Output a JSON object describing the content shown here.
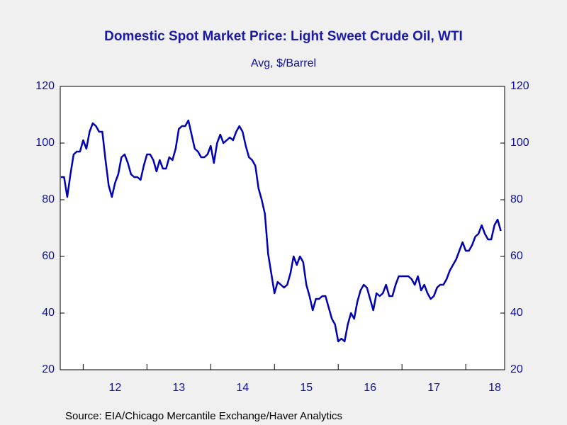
{
  "chart_data": {
    "type": "line",
    "title": "Domestic Spot Market Price: Light Sweet Crude Oil, WTI",
    "subtitle": "Avg, $/Barrel",
    "source": "Source:  EIA/Chicago Mercantile Exchange/Haver Analytics",
    "color": "#0000b4",
    "x": [
      2011.65,
      2011.7,
      2011.75,
      2011.8,
      2011.85,
      2011.9,
      2011.95,
      2012.0,
      2012.05,
      2012.1,
      2012.15,
      2012.2,
      2012.25,
      2012.3,
      2012.35,
      2012.4,
      2012.45,
      2012.5,
      2012.55,
      2012.6,
      2012.65,
      2012.7,
      2012.75,
      2012.8,
      2012.85,
      2012.9,
      2012.95,
      2013.0,
      2013.05,
      2013.1,
      2013.15,
      2013.2,
      2013.25,
      2013.3,
      2013.35,
      2013.4,
      2013.45,
      2013.5,
      2013.55,
      2013.6,
      2013.65,
      2013.7,
      2013.75,
      2013.8,
      2013.85,
      2013.9,
      2013.95,
      2014.0,
      2014.05,
      2014.1,
      2014.15,
      2014.2,
      2014.25,
      2014.3,
      2014.35,
      2014.4,
      2014.45,
      2014.5,
      2014.55,
      2014.6,
      2014.65,
      2014.7,
      2014.75,
      2014.8,
      2014.85,
      2014.9,
      2014.95,
      2015.0,
      2015.05,
      2015.1,
      2015.15,
      2015.2,
      2015.25,
      2015.3,
      2015.35,
      2015.4,
      2015.45,
      2015.5,
      2015.55,
      2015.6,
      2015.65,
      2015.7,
      2015.75,
      2015.8,
      2015.85,
      2015.9,
      2015.95,
      2016.0,
      2016.05,
      2016.1,
      2016.15,
      2016.2,
      2016.25,
      2016.3,
      2016.35,
      2016.4,
      2016.45,
      2016.5,
      2016.55,
      2016.6,
      2016.65,
      2016.7,
      2016.75,
      2016.8,
      2016.85,
      2016.9,
      2016.95,
      2017.0,
      2017.05,
      2017.1,
      2017.15,
      2017.2,
      2017.25,
      2017.3,
      2017.35,
      2017.4,
      2017.45,
      2017.5,
      2017.55,
      2017.6,
      2017.65,
      2017.7,
      2017.75,
      2017.8,
      2017.85,
      2017.9,
      2017.95,
      2018.0,
      2018.05,
      2018.1,
      2018.15,
      2018.2,
      2018.25,
      2018.3,
      2018.35,
      2018.4,
      2018.45,
      2018.5,
      2018.55
    ],
    "values": [
      88,
      88,
      81,
      89,
      96,
      97,
      97,
      101,
      98,
      104,
      107,
      106,
      104,
      104,
      94,
      85,
      81,
      86,
      89,
      95,
      96,
      93,
      89,
      88,
      88,
      87,
      92,
      96,
      96,
      94,
      90,
      94,
      91,
      91,
      95,
      94,
      98,
      105,
      106,
      106,
      108,
      103,
      98,
      97,
      95,
      95,
      96,
      99,
      93,
      100,
      103,
      100,
      101,
      102,
      101,
      104,
      106,
      104,
      99,
      95,
      94,
      92,
      84,
      80,
      75,
      61,
      54,
      47,
      51,
      50,
      49,
      50,
      54,
      60,
      57,
      60,
      58,
      50,
      46,
      41,
      45,
      45,
      46,
      46,
      42,
      38,
      36,
      30,
      31,
      30,
      36,
      40,
      38,
      44,
      48,
      50,
      49,
      45,
      41,
      47,
      46,
      47,
      50,
      46,
      46,
      50,
      53,
      53,
      53,
      53,
      52,
      50,
      53,
      48,
      50,
      47,
      45,
      46,
      49,
      50,
      50,
      52,
      55,
      57,
      59,
      62,
      65,
      62,
      62,
      64,
      67,
      68,
      71,
      68,
      66,
      66,
      71,
      73,
      69
    ],
    "xlim": [
      2011.64,
      2018.61
    ],
    "xticks": [
      {
        "value": 2012,
        "label": "12"
      },
      {
        "value": 2013,
        "label": "13"
      },
      {
        "value": 2014,
        "label": "14"
      },
      {
        "value": 2015,
        "label": "15"
      },
      {
        "value": 2016,
        "label": "16"
      },
      {
        "value": 2017,
        "label": "17"
      },
      {
        "value": 2018,
        "label": "18"
      }
    ],
    "ylim": [
      20,
      120
    ],
    "yticks": [
      20,
      40,
      60,
      80,
      100,
      120
    ]
  }
}
